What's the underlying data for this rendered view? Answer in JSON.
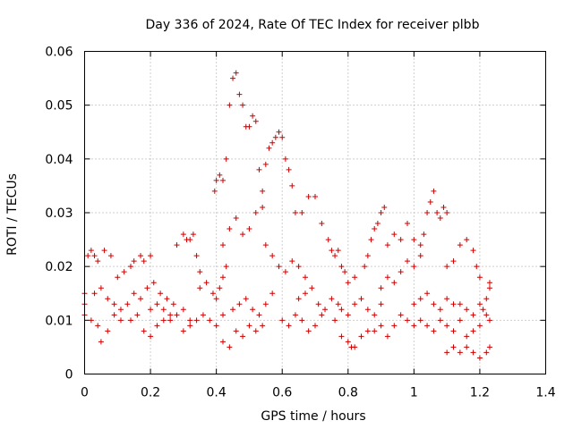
{
  "chart_data": {
    "type": "scatter",
    "title": "Day 336 of 2024, Rate Of TEC Index for receiver plbb",
    "xlabel": "GPS time / hours",
    "ylabel": "ROTI / TECUs",
    "xlim": [
      0,
      1.4
    ],
    "ylim": [
      0,
      0.06
    ],
    "xticks": [
      0,
      0.2,
      0.4,
      0.6,
      0.8,
      1.0,
      1.2,
      1.4
    ],
    "xtick_labels": [
      "0",
      "0.2",
      "0.4",
      "0.6",
      "0.8",
      "1",
      "1.2",
      "1.4"
    ],
    "yticks": [
      0,
      0.01,
      0.02,
      0.03,
      0.04,
      0.05,
      0.06
    ],
    "ytick_labels": [
      "0",
      "0.01",
      "0.02",
      "0.03",
      "0.04",
      "0.05",
      "0.06"
    ],
    "grid": true,
    "marker": "+",
    "color": "#cc0000",
    "series": [
      {
        "name": "ROTI",
        "points": [
          [
            0.0,
            0.015
          ],
          [
            0.01,
            0.022
          ],
          [
            0.02,
            0.023
          ],
          [
            0.03,
            0.022
          ],
          [
            0.04,
            0.021
          ],
          [
            0.06,
            0.023
          ],
          [
            0.08,
            0.022
          ],
          [
            0.0,
            0.011
          ],
          [
            0.02,
            0.01
          ],
          [
            0.04,
            0.009
          ],
          [
            0.05,
            0.006
          ],
          [
            0.07,
            0.008
          ],
          [
            0.09,
            0.011
          ],
          [
            0.11,
            0.01
          ],
          [
            0.0,
            0.013
          ],
          [
            0.03,
            0.015
          ],
          [
            0.05,
            0.016
          ],
          [
            0.07,
            0.014
          ],
          [
            0.09,
            0.013
          ],
          [
            0.11,
            0.012
          ],
          [
            0.13,
            0.013
          ],
          [
            0.1,
            0.018
          ],
          [
            0.12,
            0.019
          ],
          [
            0.14,
            0.02
          ],
          [
            0.15,
            0.021
          ],
          [
            0.17,
            0.022
          ],
          [
            0.18,
            0.021
          ],
          [
            0.2,
            0.022
          ],
          [
            0.14,
            0.01
          ],
          [
            0.16,
            0.011
          ],
          [
            0.18,
            0.008
          ],
          [
            0.2,
            0.007
          ],
          [
            0.22,
            0.009
          ],
          [
            0.24,
            0.01
          ],
          [
            0.26,
            0.011
          ],
          [
            0.15,
            0.015
          ],
          [
            0.17,
            0.014
          ],
          [
            0.19,
            0.016
          ],
          [
            0.21,
            0.017
          ],
          [
            0.23,
            0.015
          ],
          [
            0.25,
            0.014
          ],
          [
            0.27,
            0.013
          ],
          [
            0.2,
            0.012
          ],
          [
            0.22,
            0.013
          ],
          [
            0.24,
            0.012
          ],
          [
            0.26,
            0.01
          ],
          [
            0.28,
            0.011
          ],
          [
            0.3,
            0.012
          ],
          [
            0.32,
            0.01
          ],
          [
            0.28,
            0.024
          ],
          [
            0.3,
            0.026
          ],
          [
            0.31,
            0.025
          ],
          [
            0.32,
            0.025
          ],
          [
            0.33,
            0.026
          ],
          [
            0.34,
            0.022
          ],
          [
            0.35,
            0.019
          ],
          [
            0.3,
            0.008
          ],
          [
            0.32,
            0.009
          ],
          [
            0.34,
            0.01
          ],
          [
            0.36,
            0.011
          ],
          [
            0.38,
            0.01
          ],
          [
            0.4,
            0.009
          ],
          [
            0.42,
            0.011
          ],
          [
            0.35,
            0.016
          ],
          [
            0.37,
            0.017
          ],
          [
            0.39,
            0.015
          ],
          [
            0.4,
            0.014
          ],
          [
            0.41,
            0.016
          ],
          [
            0.42,
            0.018
          ],
          [
            0.43,
            0.02
          ],
          [
            0.395,
            0.034
          ],
          [
            0.4,
            0.036
          ],
          [
            0.41,
            0.037
          ],
          [
            0.42,
            0.036
          ],
          [
            0.43,
            0.04
          ],
          [
            0.44,
            0.05
          ],
          [
            0.45,
            0.055
          ],
          [
            0.46,
            0.056
          ],
          [
            0.47,
            0.052
          ],
          [
            0.48,
            0.05
          ],
          [
            0.49,
            0.046
          ],
          [
            0.5,
            0.046
          ],
          [
            0.51,
            0.048
          ],
          [
            0.52,
            0.047
          ],
          [
            0.53,
            0.038
          ],
          [
            0.54,
            0.034
          ],
          [
            0.55,
            0.039
          ],
          [
            0.56,
            0.042
          ],
          [
            0.57,
            0.043
          ],
          [
            0.58,
            0.044
          ],
          [
            0.59,
            0.045
          ],
          [
            0.6,
            0.044
          ],
          [
            0.61,
            0.04
          ],
          [
            0.62,
            0.038
          ],
          [
            0.63,
            0.035
          ],
          [
            0.64,
            0.03
          ],
          [
            0.66,
            0.03
          ],
          [
            0.68,
            0.033
          ],
          [
            0.7,
            0.033
          ],
          [
            0.72,
            0.028
          ],
          [
            0.74,
            0.025
          ],
          [
            0.42,
            0.024
          ],
          [
            0.44,
            0.027
          ],
          [
            0.46,
            0.029
          ],
          [
            0.48,
            0.026
          ],
          [
            0.5,
            0.027
          ],
          [
            0.52,
            0.03
          ],
          [
            0.54,
            0.031
          ],
          [
            0.42,
            0.006
          ],
          [
            0.44,
            0.005
          ],
          [
            0.46,
            0.008
          ],
          [
            0.48,
            0.007
          ],
          [
            0.5,
            0.009
          ],
          [
            0.52,
            0.008
          ],
          [
            0.54,
            0.009
          ],
          [
            0.45,
            0.012
          ],
          [
            0.47,
            0.013
          ],
          [
            0.49,
            0.014
          ],
          [
            0.51,
            0.012
          ],
          [
            0.53,
            0.011
          ],
          [
            0.55,
            0.013
          ],
          [
            0.57,
            0.015
          ],
          [
            0.55,
            0.024
          ],
          [
            0.57,
            0.022
          ],
          [
            0.59,
            0.02
          ],
          [
            0.61,
            0.019
          ],
          [
            0.63,
            0.021
          ],
          [
            0.65,
            0.02
          ],
          [
            0.67,
            0.018
          ],
          [
            0.6,
            0.01
          ],
          [
            0.62,
            0.009
          ],
          [
            0.64,
            0.011
          ],
          [
            0.66,
            0.01
          ],
          [
            0.68,
            0.008
          ],
          [
            0.7,
            0.009
          ],
          [
            0.72,
            0.011
          ],
          [
            0.65,
            0.014
          ],
          [
            0.67,
            0.015
          ],
          [
            0.69,
            0.016
          ],
          [
            0.71,
            0.013
          ],
          [
            0.73,
            0.012
          ],
          [
            0.75,
            0.014
          ],
          [
            0.77,
            0.013
          ],
          [
            0.75,
            0.023
          ],
          [
            0.76,
            0.022
          ],
          [
            0.77,
            0.023
          ],
          [
            0.78,
            0.02
          ],
          [
            0.79,
            0.019
          ],
          [
            0.8,
            0.017
          ],
          [
            0.82,
            0.018
          ],
          [
            0.76,
            0.01
          ],
          [
            0.78,
            0.007
          ],
          [
            0.8,
            0.006
          ],
          [
            0.81,
            0.005
          ],
          [
            0.82,
            0.005
          ],
          [
            0.84,
            0.007
          ],
          [
            0.86,
            0.008
          ],
          [
            0.78,
            0.012
          ],
          [
            0.8,
            0.011
          ],
          [
            0.82,
            0.013
          ],
          [
            0.84,
            0.014
          ],
          [
            0.86,
            0.012
          ],
          [
            0.88,
            0.011
          ],
          [
            0.9,
            0.013
          ],
          [
            0.85,
            0.02
          ],
          [
            0.86,
            0.022
          ],
          [
            0.87,
            0.025
          ],
          [
            0.88,
            0.027
          ],
          [
            0.89,
            0.028
          ],
          [
            0.9,
            0.03
          ],
          [
            0.91,
            0.031
          ],
          [
            0.88,
            0.008
          ],
          [
            0.9,
            0.009
          ],
          [
            0.92,
            0.007
          ],
          [
            0.94,
            0.009
          ],
          [
            0.96,
            0.011
          ],
          [
            0.98,
            0.01
          ],
          [
            1.0,
            0.009
          ],
          [
            0.9,
            0.016
          ],
          [
            0.92,
            0.018
          ],
          [
            0.94,
            0.017
          ],
          [
            0.96,
            0.019
          ],
          [
            0.98,
            0.021
          ],
          [
            1.0,
            0.02
          ],
          [
            1.02,
            0.022
          ],
          [
            0.92,
            0.024
          ],
          [
            0.94,
            0.026
          ],
          [
            0.96,
            0.025
          ],
          [
            0.98,
            0.028
          ],
          [
            1.0,
            0.025
          ],
          [
            1.02,
            0.024
          ],
          [
            1.03,
            0.026
          ],
          [
            1.04,
            0.03
          ],
          [
            1.05,
            0.032
          ],
          [
            1.06,
            0.034
          ],
          [
            1.07,
            0.03
          ],
          [
            1.08,
            0.029
          ],
          [
            1.09,
            0.031
          ],
          [
            1.1,
            0.03
          ],
          [
            1.0,
            0.013
          ],
          [
            1.02,
            0.014
          ],
          [
            1.04,
            0.015
          ],
          [
            1.06,
            0.013
          ],
          [
            1.08,
            0.012
          ],
          [
            1.1,
            0.014
          ],
          [
            1.12,
            0.013
          ],
          [
            1.02,
            0.01
          ],
          [
            1.04,
            0.009
          ],
          [
            1.06,
            0.008
          ],
          [
            1.08,
            0.01
          ],
          [
            1.1,
            0.009
          ],
          [
            1.12,
            0.008
          ],
          [
            1.14,
            0.01
          ],
          [
            1.1,
            0.004
          ],
          [
            1.12,
            0.005
          ],
          [
            1.14,
            0.004
          ],
          [
            1.16,
            0.005
          ],
          [
            1.18,
            0.004
          ],
          [
            1.2,
            0.003
          ],
          [
            1.22,
            0.004
          ],
          [
            1.1,
            0.02
          ],
          [
            1.12,
            0.021
          ],
          [
            1.14,
            0.024
          ],
          [
            1.16,
            0.025
          ],
          [
            1.18,
            0.023
          ],
          [
            1.19,
            0.02
          ],
          [
            1.2,
            0.018
          ],
          [
            1.14,
            0.013
          ],
          [
            1.16,
            0.012
          ],
          [
            1.18,
            0.011
          ],
          [
            1.2,
            0.013
          ],
          [
            1.21,
            0.012
          ],
          [
            1.22,
            0.011
          ],
          [
            1.23,
            0.01
          ],
          [
            1.16,
            0.007
          ],
          [
            1.18,
            0.008
          ],
          [
            1.2,
            0.009
          ],
          [
            1.22,
            0.014
          ],
          [
            1.23,
            0.016
          ],
          [
            1.23,
            0.017
          ],
          [
            1.23,
            0.005
          ]
        ]
      }
    ]
  }
}
